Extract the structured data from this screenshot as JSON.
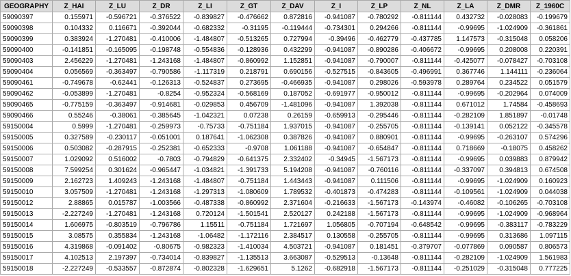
{
  "table": {
    "columns": [
      "GEOGRAPHY",
      "Z_HAI",
      "Z_LU",
      "Z_DR",
      "Z_LI",
      "Z_GT",
      "Z_DAV",
      "Z_I",
      "Z_LP",
      "Z_NL",
      "Z_LA",
      "Z_DMR",
      "Z_1960C"
    ],
    "rows": [
      [
        "59090397",
        "0.155971",
        "-0.596721",
        "-0.376522",
        "-0.839827",
        "-0.476662",
        "0.872816",
        "-0.941087",
        "-0.780292",
        "-0.811144",
        "0.432732",
        "-0.028083",
        "-0.199679"
      ],
      [
        "59090398",
        "0.104332",
        "0.116671",
        "-0.392044",
        "-0.682332",
        "-0.31195",
        "-0.119444",
        "-0.734301",
        "0.294266",
        "-0.811144",
        "-0.99695",
        "-1.024909",
        "-0.361861"
      ],
      [
        "59090399",
        "0.383924",
        "-1.270481",
        "-0.410006",
        "-1.484807",
        "-0.513265",
        "0.727994",
        "-0.39496",
        "-0.462779",
        "-0.437785",
        "1.147573",
        "-0.315048",
        "0.058206"
      ],
      [
        "59090400",
        "-0.141851",
        "-0.165095",
        "-0.198748",
        "-0.554836",
        "-0.128936",
        "0.432299",
        "-0.941087",
        "-0.890286",
        "-0.406672",
        "-0.99695",
        "0.208008",
        "0.220391"
      ],
      [
        "59090403",
        "2.456229",
        "-1.270481",
        "-1.243168",
        "-1.484807",
        "-0.860992",
        "1.152851",
        "-0.941087",
        "-0.790007",
        "-0.811144",
        "-0.425077",
        "-0.078427",
        "-0.703108"
      ],
      [
        "59090404",
        "0.056569",
        "-0.363497",
        "-0.790586",
        "-1.117319",
        "0.218791",
        "0.690156",
        "-0.527515",
        "-0.843605",
        "-0.496991",
        "0.367746",
        "1.144111",
        "-0.236064"
      ],
      [
        "59090461",
        "-0.749678",
        "-0.62441",
        "-0.126313",
        "-0.524837",
        "0.273695",
        "-0.466935",
        "-0.941087",
        "0.298026",
        "-0.593978",
        "0.289764",
        "0.234522",
        "0.051579"
      ],
      [
        "59090462",
        "-0.053899",
        "-1.270481",
        "-0.8254",
        "-0.952324",
        "-0.568169",
        "0.187052",
        "-0.691977",
        "-0.950012",
        "-0.811144",
        "-0.99695",
        "-0.202964",
        "0.074009"
      ],
      [
        "59090465",
        "-0.775159",
        "-0.363497",
        "-0.914681",
        "-0.029853",
        "0.456709",
        "-1.481096",
        "-0.941087",
        "1.392038",
        "-0.811144",
        "0.671012",
        "1.74584",
        "-0.458693"
      ],
      [
        "59090466",
        "0.55246",
        "-0.38061",
        "-0.385645",
        "-1.042321",
        "0.07238",
        "0.26159",
        "-0.659913",
        "-0.295446",
        "-0.811144",
        "-0.282109",
        "1.851897",
        "-0.01748"
      ],
      [
        "59150004",
        "0.5999",
        "-1.270481",
        "-0.259973",
        "-0.75733",
        "-0.751184",
        "1.937015",
        "-0.941087",
        "-0.255705",
        "-0.811144",
        "-0.139141",
        "0.052122",
        "-0.345578"
      ],
      [
        "59150005",
        "0.327589",
        "-0.230117",
        "-0.051001",
        "0.187641",
        "-1.062308",
        "0.387826",
        "-0.941087",
        "0.880901",
        "-0.811144",
        "-0.99695",
        "-0.263107",
        "0.574296"
      ],
      [
        "59150006",
        "0.503082",
        "-0.287915",
        "-0.252381",
        "-0.652333",
        "-0.9708",
        "1.061188",
        "-0.941087",
        "-0.654847",
        "-0.811144",
        "0.718669",
        "-0.18075",
        "0.458262"
      ],
      [
        "59150007",
        "1.029092",
        "0.516002",
        "-0.7803",
        "-0.794829",
        "-0.641375",
        "2.332402",
        "-0.34945",
        "-1.567173",
        "-0.811144",
        "-0.99695",
        "0.039883",
        "0.879942"
      ],
      [
        "59150008",
        "7.599254",
        "0.301624",
        "-0.965447",
        "-1.034821",
        "-1.391733",
        "5.194208",
        "-0.941087",
        "-0.760116",
        "-0.811144",
        "-0.337097",
        "0.394813",
        "0.674508"
      ],
      [
        "59150009",
        "2.162723",
        "1.409243",
        "-1.243168",
        "-1.484807",
        "-0.751184",
        "1.443443",
        "-0.941087",
        "0.111506",
        "-0.811144",
        "-0.99695",
        "-1.024909",
        "0.160923"
      ],
      [
        "59150010",
        "3.057509",
        "-1.270481",
        "-1.243168",
        "-1.297313",
        "-1.080609",
        "1.789532",
        "-0.401873",
        "-0.474283",
        "-0.811144",
        "-0.109561",
        "-1.024909",
        "0.044038"
      ],
      [
        "59150012",
        "2.88865",
        "0.015787",
        "-1.003566",
        "-0.487338",
        "-0.860992",
        "2.371604",
        "-0.216633",
        "-1.567173",
        "-0.143974",
        "-0.46082",
        "-0.106265",
        "-0.703108"
      ],
      [
        "59150013",
        "-2.227249",
        "-1.270481",
        "-1.243168",
        "0.720124",
        "-1.501541",
        "2.520127",
        "0.242188",
        "-1.567173",
        "-0.811144",
        "-0.99695",
        "-1.024909",
        "-0.968964"
      ],
      [
        "59150014",
        "1.606975",
        "-0.803519",
        "-0.796786",
        "1.15511",
        "-0.751184",
        "1.721697",
        "1.056805",
        "-0.707194",
        "-0.648542",
        "-0.99695",
        "-0.383117",
        "-0.783229"
      ],
      [
        "59150015",
        "3.08575",
        "0.355834",
        "-1.243168",
        "-1.06482",
        "-1.172116",
        "2.384517",
        "0.130558",
        "-0.255705",
        "-0.811144",
        "-0.99695",
        "0.313686",
        "1.097115"
      ],
      [
        "59150016",
        "4.319868",
        "-0.091402",
        "-0.80675",
        "-0.982323",
        "-1.410034",
        "4.503721",
        "-0.941087",
        "0.181451",
        "-0.379707",
        "-0.077869",
        "0.090587",
        "0.806573"
      ],
      [
        "59150017",
        "4.102513",
        "2.197397",
        "-0.734014",
        "-0.839827",
        "-1.135513",
        "3.663087",
        "-0.529513",
        "-0.13648",
        "-0.811144",
        "-0.282109",
        "-1.024909",
        "1.561983"
      ],
      [
        "59150018",
        "-2.227249",
        "-0.533557",
        "-0.872874",
        "-0.802328",
        "-1.629651",
        "5.1262",
        "-0.682918",
        "-1.567173",
        "-0.811144",
        "-0.251029",
        "-0.315048",
        "0.777225"
      ]
    ]
  }
}
